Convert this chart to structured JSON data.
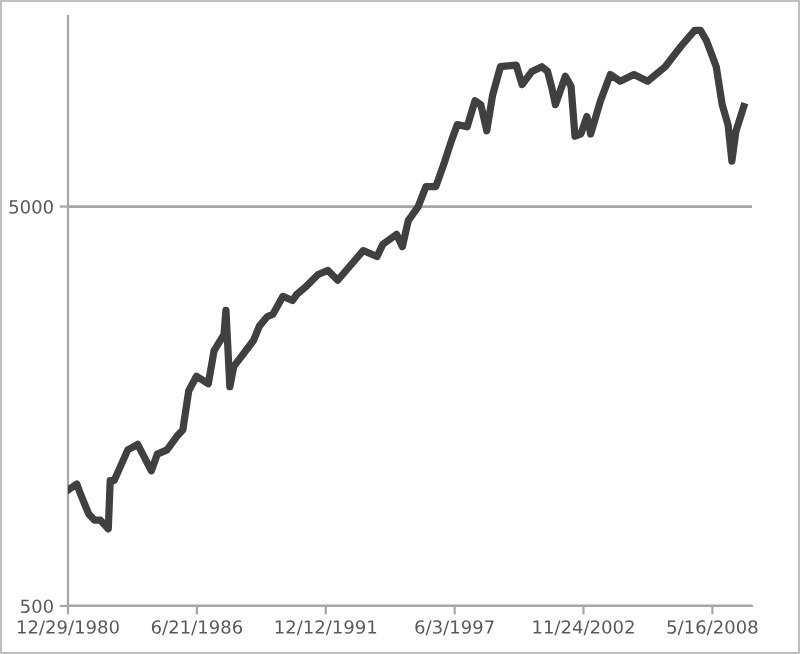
{
  "chart_data": {
    "type": "line",
    "x": [
      "1981-01",
      "1981-05",
      "1981-07",
      "1981-11",
      "1982-02",
      "1982-05",
      "1982-09",
      "1982-10",
      "1982-12",
      "1983-07",
      "1983-12",
      "1984-03",
      "1984-07",
      "1984-10",
      "1985-03",
      "1985-08",
      "1985-11",
      "1986-02",
      "1986-06",
      "1986-12",
      "1987-03",
      "1987-08",
      "1987-09",
      "1987-11",
      "1988-01",
      "1988-05",
      "1988-11",
      "1989-02",
      "1989-06",
      "1989-09",
      "1990-02",
      "1990-07",
      "1990-09",
      "1991-02",
      "1991-08",
      "1992-01",
      "1992-06",
      "1992-12",
      "1993-07",
      "1994-02",
      "1994-05",
      "1994-12",
      "1995-03",
      "1995-06",
      "1995-11",
      "1996-03",
      "1996-08",
      "1996-12",
      "1997-04",
      "1997-07",
      "1997-12",
      "1998-04",
      "1998-07",
      "1998-10",
      "1999-01",
      "1999-05",
      "2000-01",
      "2000-04",
      "2000-09",
      "2001-02",
      "2001-05",
      "2001-07",
      "2001-09",
      "2002-02",
      "2002-05",
      "2002-07",
      "2002-10",
      "2003-01",
      "2003-03",
      "2003-08",
      "2004-01",
      "2004-06",
      "2005-01",
      "2005-08",
      "2006-05",
      "2007-01",
      "2007-08",
      "2007-11",
      "2008-02",
      "2008-07",
      "2008-10",
      "2009-01",
      "2009-03",
      "2009-05",
      "2009-09"
    ],
    "series": [
      {
        "color": "#404040",
        "values": [
          980,
          1010,
          950,
          850,
          820,
          820,
          780,
          1030,
          1030,
          1230,
          1270,
          1190,
          1090,
          1200,
          1230,
          1330,
          1380,
          1730,
          1880,
          1800,
          2180,
          2390,
          2750,
          1770,
          1990,
          2110,
          2310,
          2510,
          2650,
          2690,
          2980,
          2910,
          3010,
          3160,
          3380,
          3460,
          3270,
          3540,
          3880,
          3750,
          4020,
          4260,
          3970,
          4610,
          5000,
          5610,
          5610,
          6370,
          7310,
          8020,
          7920,
          9200,
          8990,
          7740,
          9530,
          11200,
          11300,
          10100,
          10900,
          11200,
          10900,
          10000,
          9000,
          10600,
          10000,
          7500,
          7600,
          8400,
          7600,
          9200,
          10700,
          10300,
          10700,
          10300,
          11200,
          12600,
          13800,
          13800,
          13000,
          11200,
          9000,
          8000,
          6500,
          7700,
          8900
        ]
      }
    ],
    "xlim": [
      "1980-12-29",
      "2010-01-21"
    ],
    "xticks": [
      {
        "value": "1980-12-29",
        "label": "12/29/1980"
      },
      {
        "value": "1986-06-21",
        "label": "6/21/1986"
      },
      {
        "value": "1991-12-12",
        "label": "12/12/1991"
      },
      {
        "value": "1997-06-03",
        "label": "6/3/1997"
      },
      {
        "value": "2002-11-24",
        "label": "11/24/2002"
      },
      {
        "value": "2008-05-16",
        "label": "5/16/2008"
      }
    ],
    "log": true,
    "ylim": [
      500,
      15000
    ],
    "yticks": [
      500,
      5000
    ],
    "grid": "y",
    "line_style": "solid"
  }
}
